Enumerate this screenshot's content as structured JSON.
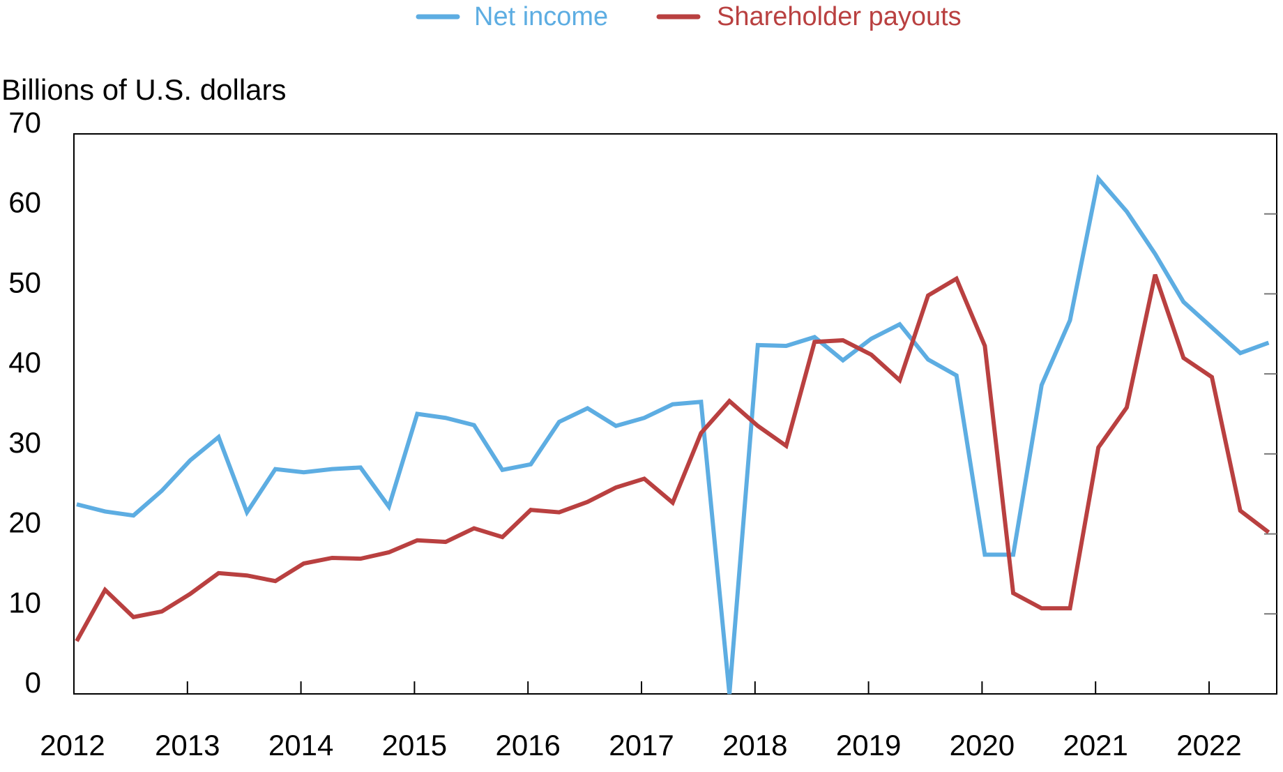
{
  "chart_data": {
    "type": "line",
    "title": "",
    "ylabel": "Billions of U.S. dollars",
    "xlabel": "",
    "ylim": [
      0,
      70
    ],
    "yticks": [
      0,
      10,
      20,
      30,
      40,
      50,
      60,
      70
    ],
    "xlim": [
      2012,
      2022.75
    ],
    "xticks": [
      "2012",
      "2013",
      "2014",
      "2015",
      "2016",
      "2017",
      "2018",
      "2019",
      "2020",
      "2021",
      "2022"
    ],
    "x_frequency": "quarterly, 2012 Q1 to 2022 Q3",
    "grid": false,
    "legend_position": "top-center",
    "series": [
      {
        "name": "Net income",
        "color": "#5DADE2",
        "values": [
          23.7,
          22.8,
          22.3,
          25.4,
          29.2,
          32.1,
          22.7,
          28.1,
          27.7,
          28.1,
          28.3,
          23.4,
          35.0,
          34.5,
          33.6,
          28.0,
          28.7,
          34.0,
          35.7,
          33.5,
          34.5,
          36.2,
          36.5,
          0.0,
          43.6,
          43.5,
          44.6,
          41.7,
          44.4,
          46.2,
          41.8,
          39.8,
          17.4,
          17.4,
          38.6,
          46.7,
          64.4,
          60.3,
          55.0,
          49.0,
          45.8,
          42.6,
          43.9
        ]
      },
      {
        "name": "Shareholder payouts",
        "color": "#B94040",
        "values": [
          6.6,
          13.0,
          9.6,
          10.3,
          12.5,
          15.1,
          14.8,
          14.1,
          16.3,
          17.0,
          16.9,
          17.7,
          19.2,
          19.0,
          20.7,
          19.6,
          23.0,
          22.7,
          24.0,
          25.8,
          26.9,
          23.9,
          32.6,
          36.6,
          33.5,
          31.0,
          44.0,
          44.2,
          42.4,
          39.2,
          49.8,
          51.9,
          43.5,
          12.6,
          10.7,
          10.7,
          30.8,
          35.8,
          52.4,
          42.0,
          39.6,
          22.9,
          20.2
        ]
      }
    ]
  }
}
